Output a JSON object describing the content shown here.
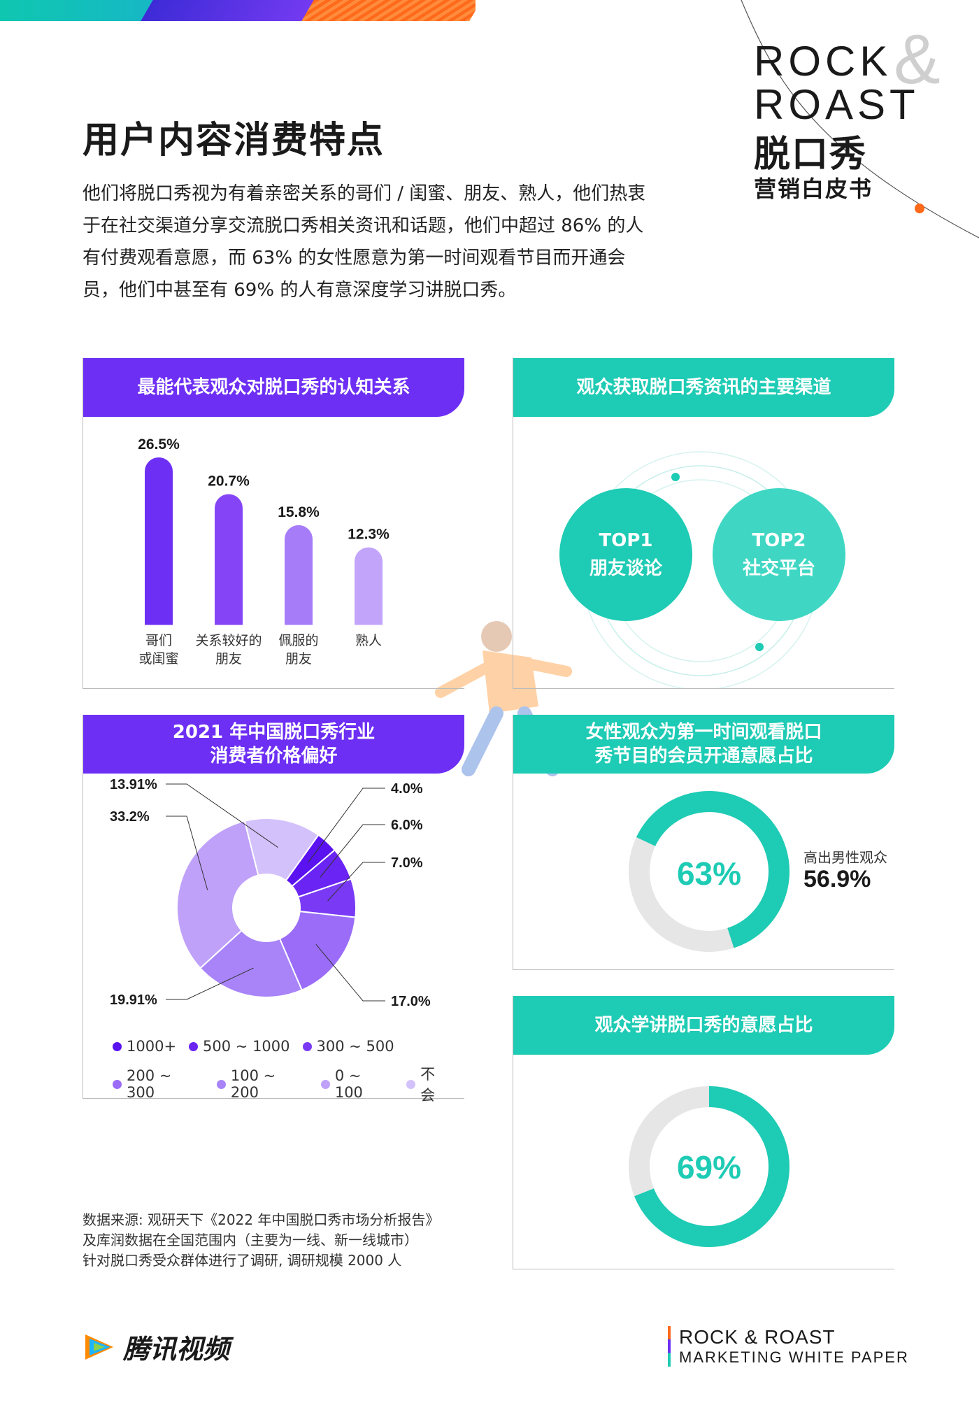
{
  "brand": {
    "logo_line1": "ROCK",
    "logo_amp": "&",
    "logo_line2": "ROAST",
    "logo_cn": "脱口秀",
    "logo_cn2": "营销白皮书"
  },
  "title": "用户内容消费特点",
  "intro": "他们将脱口秀视为有着亲密关系的哥们 / 闺蜜、朋友、熟人，他们热衷于在社交渠道分享交流脱口秀相关资讯和话题，他们中超过 86% 的人有付费观看意愿，而 63% 的女性愿意为第一时间观看节目而开通会员，他们中甚至有 69% 的人有意深度学习讲脱口秀。",
  "panel1": {
    "heading": "最能代表观众对脱口秀的认知关系",
    "chart_data": {
      "type": "bar",
      "categories": [
        "哥们\n或闺蜜",
        "关系较好的\n朋友",
        "佩服的\n朋友",
        "熟人"
      ],
      "values": [
        26.5,
        20.7,
        15.8,
        12.3
      ],
      "value_labels": [
        "26.5%",
        "20.7%",
        "15.8%",
        "12.3%"
      ],
      "colors": [
        "#6d2ff4",
        "#8545f7",
        "#a77cf9",
        "#c2a4fb"
      ],
      "ylim": [
        0,
        30
      ]
    }
  },
  "panel2": {
    "heading": "观众获取脱口秀资讯的主要渠道",
    "bubbles": [
      {
        "rank": "TOP1",
        "label": "朋友谈论",
        "color": "#1ecbb4"
      },
      {
        "rank": "TOP2",
        "label": "社交平台",
        "color": "#3fd7c3"
      }
    ]
  },
  "panel3": {
    "heading_line1": "2021 年中国脱口秀行业",
    "heading_line2": "消费者价格偏好",
    "chart_data": {
      "type": "pie",
      "labels": [
        "1000+",
        "500 ~ 1000",
        "300 ~ 500",
        "200 ~ 300",
        "100 ~ 200",
        "0 ~ 100",
        "不会"
      ],
      "values": [
        4.0,
        6.0,
        7.0,
        17.0,
        19.91,
        33.2,
        13.91
      ],
      "value_labels": [
        "4.0%",
        "6.0%",
        "7.0%",
        "17.0%",
        "19.91%",
        "33.2%",
        "13.91%"
      ],
      "colors": [
        "#5a12f0",
        "#6a25f4",
        "#7a3af5",
        "#9a6cf8",
        "#a884f8",
        "#bfa1fa",
        "#d3c1fc"
      ]
    }
  },
  "panel4": {
    "heading_line1": "女性观众为第一时间观看脱口",
    "heading_line2": "秀节目的会员开通意愿占比",
    "percent": 63,
    "percent_label": "63%",
    "side_label": "高出男性观众",
    "side_value": "56.9%",
    "color": "#1ecbb4",
    "track_color": "#e6e6e6"
  },
  "panel5": {
    "heading": "观众学讲脱口秀的意愿占比",
    "percent": 69,
    "percent_label": "69%",
    "color": "#1ecbb4",
    "track_color": "#e6e6e6"
  },
  "source": {
    "line1": "数据来源: 观研天下《2022 年中国脱口秀市场分析报告》",
    "line2": "及库润数据在全国范围内（主要为一线、新一线城市）",
    "line3": "针对脱口秀受众群体进行了调研, 调研规模 2000 人"
  },
  "footer": {
    "left_brand": "腾讯视频",
    "right_line1": "ROCK & ROAST",
    "right_line2": "MARKETING WHITE PAPER"
  }
}
